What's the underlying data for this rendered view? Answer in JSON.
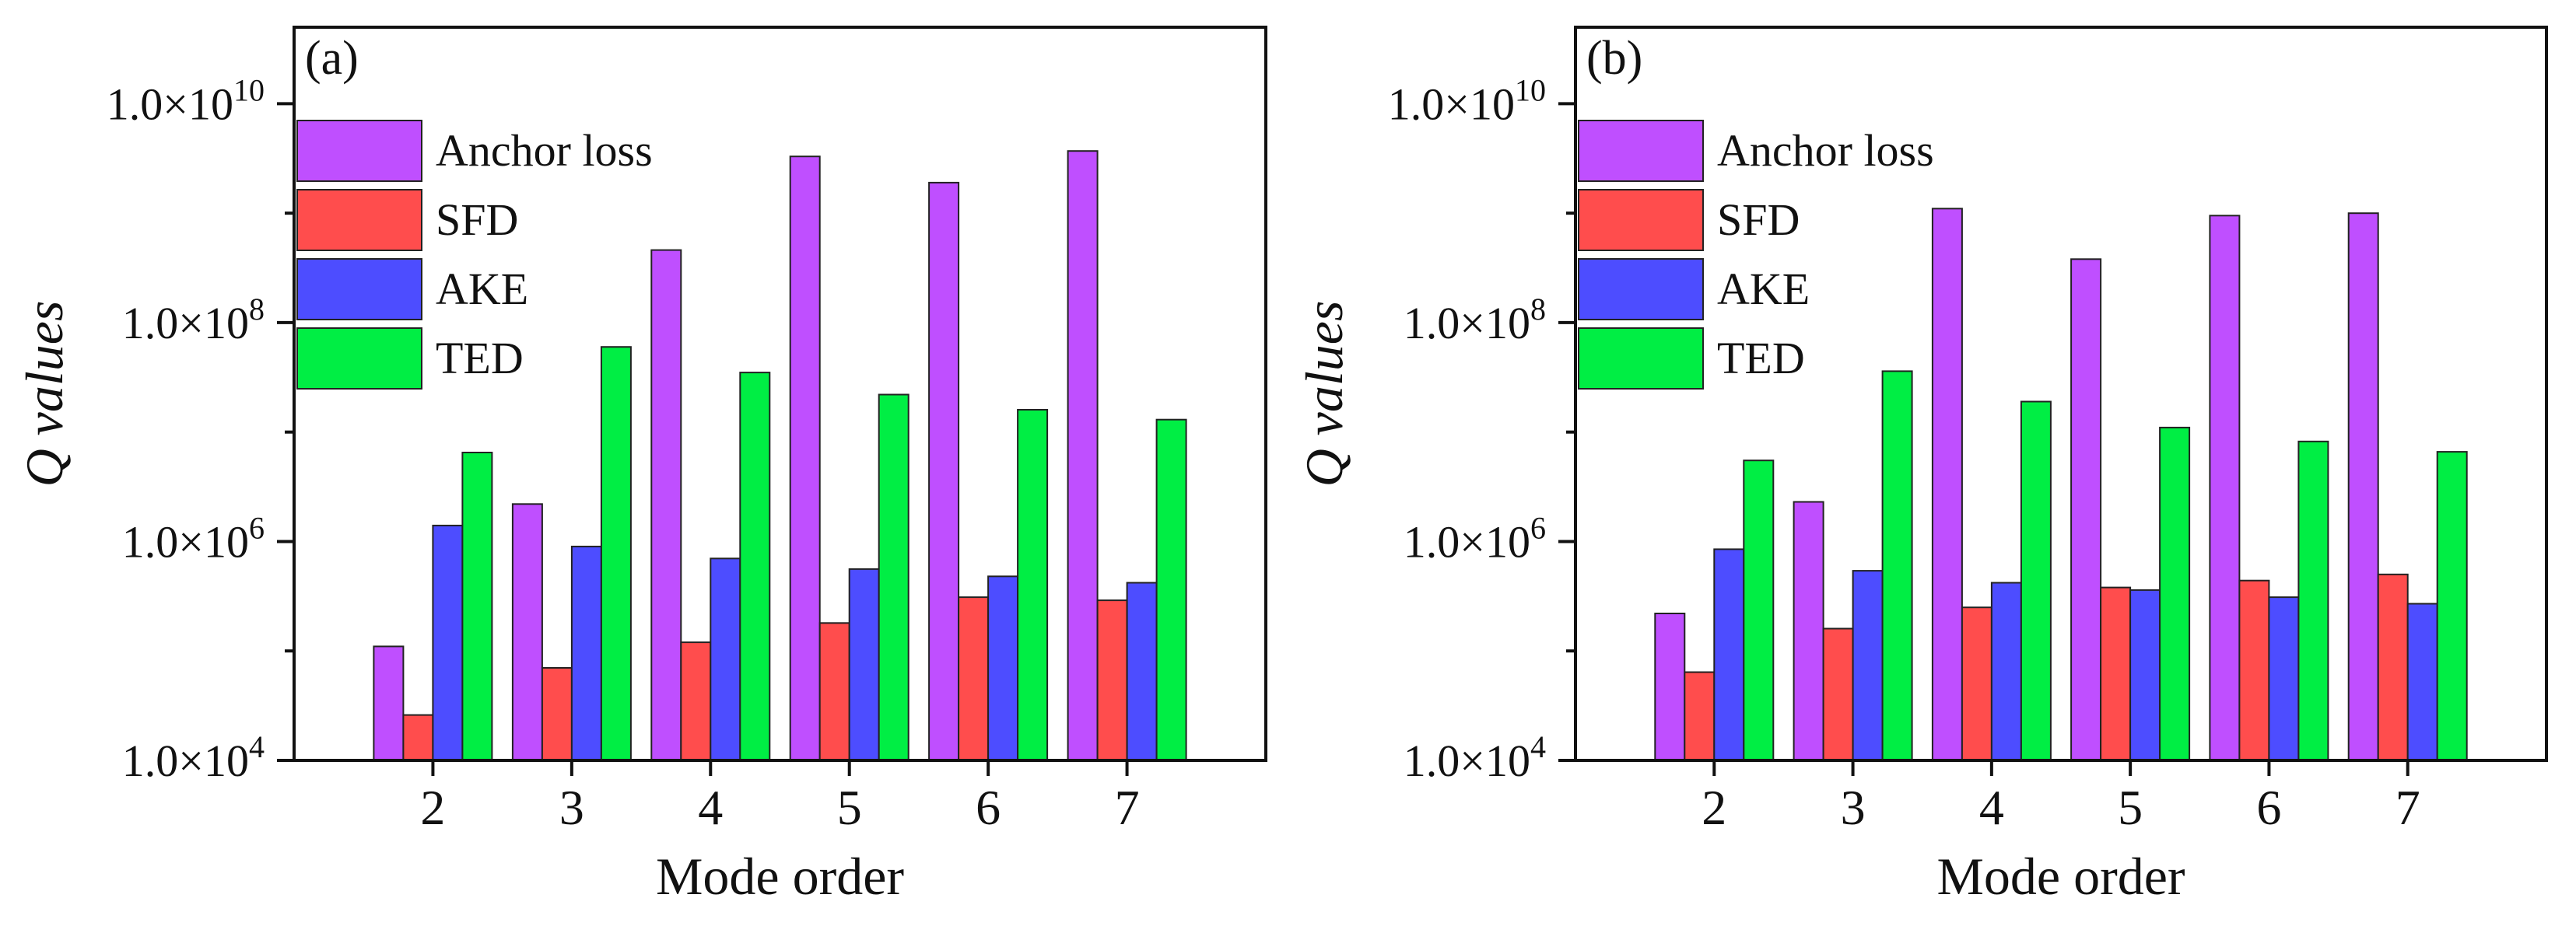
{
  "chart_data": [
    {
      "type": "bar",
      "panel_label": "(a)",
      "xlabel": "Mode order",
      "ylabel_main": "Q",
      "ylabel_rest": " values",
      "yscale": "log",
      "ylim": [
        10000,
        50000000000
      ],
      "yticks": [
        {
          "value": 10000,
          "mantissa": "1.0×10",
          "exp": "4"
        },
        {
          "value": 1000000,
          "mantissa": "1.0×10",
          "exp": "6"
        },
        {
          "value": 100000000,
          "mantissa": "1.0×10",
          "exp": "8"
        },
        {
          "value": 10000000000,
          "mantissa": "1.0×10",
          "exp": "10"
        }
      ],
      "categories": [
        "2",
        "3",
        "4",
        "5",
        "6",
        "7"
      ],
      "series": [
        {
          "name": "Anchor loss",
          "color": "#bf4fff",
          "values": [
            110000,
            2200000,
            460000000,
            3300000000,
            1900000000,
            3700000000
          ]
        },
        {
          "name": "SFD",
          "color": "#ff4d4d",
          "values": [
            26000,
            70000,
            120000,
            180000,
            310000,
            290000
          ]
        },
        {
          "name": "AKE",
          "color": "#4d4dff",
          "values": [
            1400000,
            900000,
            700000,
            560000,
            480000,
            420000
          ]
        },
        {
          "name": "TED",
          "color": "#00ee44",
          "values": [
            6500000,
            60000000,
            35000000,
            22000000,
            16000000,
            13000000
          ]
        }
      ],
      "legend_position": "top-left"
    },
    {
      "type": "bar",
      "panel_label": "(b)",
      "xlabel": "Mode order",
      "ylabel_main": "Q",
      "ylabel_rest": " values",
      "yscale": "log",
      "ylim": [
        10000,
        50000000000
      ],
      "yticks": [
        {
          "value": 10000,
          "mantissa": "1.0×10",
          "exp": "4"
        },
        {
          "value": 1000000,
          "mantissa": "1.0×10",
          "exp": "6"
        },
        {
          "value": 100000000,
          "mantissa": "1.0×10",
          "exp": "8"
        },
        {
          "value": 10000000000,
          "mantissa": "1.0×10",
          "exp": "10"
        }
      ],
      "categories": [
        "2",
        "3",
        "4",
        "5",
        "6",
        "7"
      ],
      "series": [
        {
          "name": "Anchor loss",
          "color": "#bf4fff",
          "values": [
            220000,
            2300000,
            1100000000,
            380000000,
            950000000,
            1000000000
          ]
        },
        {
          "name": "SFD",
          "color": "#ff4d4d",
          "values": [
            64000,
            160000,
            250000,
            380000,
            440000,
            500000
          ]
        },
        {
          "name": "AKE",
          "color": "#4d4dff",
          "values": [
            850000,
            540000,
            420000,
            360000,
            310000,
            270000
          ]
        },
        {
          "name": "TED",
          "color": "#00ee44",
          "values": [
            5500000,
            36000000,
            19000000,
            11000000,
            8200000,
            6600000
          ]
        }
      ],
      "legend_position": "top-left"
    }
  ]
}
